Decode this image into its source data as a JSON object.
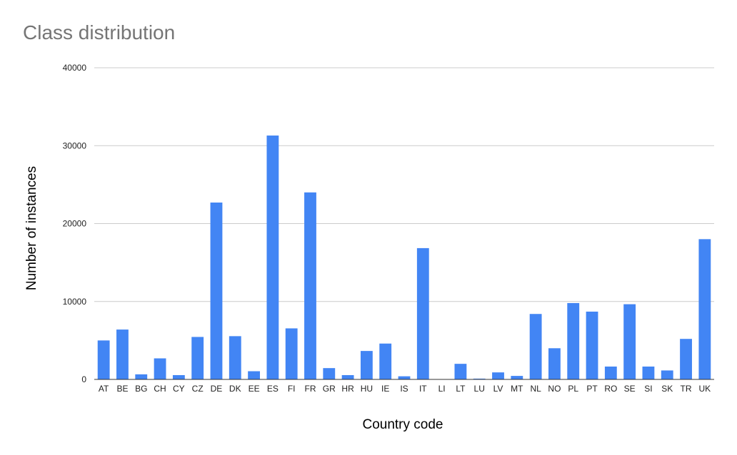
{
  "chart_data": {
    "type": "bar",
    "title": "Class distribution",
    "xlabel": "Country code",
    "ylabel": "Number of instances",
    "ylim": [
      0,
      40000
    ],
    "yticks": [
      "0",
      "10000",
      "20000",
      "30000",
      "40000"
    ],
    "ytick_values": [
      0,
      10000,
      20000,
      30000,
      40000
    ],
    "grid": true,
    "bar_color": "#4285f4",
    "categories": [
      "AT",
      "BE",
      "BG",
      "CH",
      "CY",
      "CZ",
      "DE",
      "DK",
      "EE",
      "ES",
      "FI",
      "FR",
      "GR",
      "HR",
      "HU",
      "IE",
      "IS",
      "IT",
      "LI",
      "LT",
      "LU",
      "LV",
      "MT",
      "NL",
      "NO",
      "PL",
      "PT",
      "RO",
      "SE",
      "SI",
      "SK",
      "TR",
      "UK"
    ],
    "values": [
      5000,
      6400,
      650,
      2700,
      550,
      5450,
      22700,
      5550,
      1050,
      31300,
      6550,
      24000,
      1450,
      550,
      3650,
      4600,
      400,
      16850,
      0,
      2000,
      100,
      900,
      450,
      8400,
      4000,
      9800,
      8700,
      1650,
      9650,
      1650,
      1150,
      5200,
      18000
    ]
  }
}
